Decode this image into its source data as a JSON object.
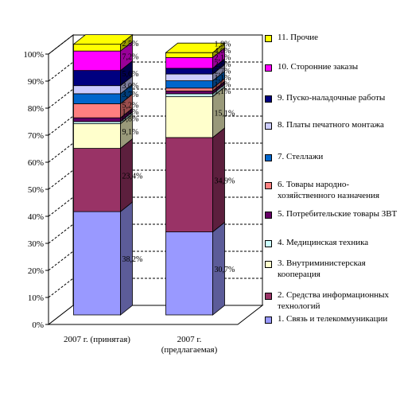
{
  "chart_data": {
    "type": "bar",
    "stacked": true,
    "three_d": true,
    "normalized_percent": true,
    "categories": [
      "2007 г. (принятая)",
      "2007 г. (предлагаемая)"
    ],
    "y_ticks": [
      "0%",
      "10%",
      "20%",
      "30%",
      "40%",
      "50%",
      "60%",
      "70%",
      "80%",
      "90%",
      "100%"
    ],
    "ylim": [
      0,
      100
    ],
    "grid": "dashed horizontal",
    "legend_position": "right",
    "series": [
      {
        "name": "1. Связь и телекоммуникации",
        "color": "#9999ff",
        "values": [
          38.2,
          30.7
        ],
        "labels": [
          "38,2%",
          "30,7%"
        ]
      },
      {
        "name": "2. Средства информационных технологий",
        "color": "#993366",
        "values": [
          23.4,
          34.9
        ],
        "labels": [
          "23,4%",
          "34,9%"
        ]
      },
      {
        "name": "3. Внутриминистерская кооперация",
        "color": "#ffffcc",
        "values": [
          9.1,
          15.1
        ],
        "labels": [
          "9,1%",
          "15,1%"
        ]
      },
      {
        "name": "4. Медицинская техника",
        "color": "#ccffff",
        "values": [
          0.8,
          1.1
        ],
        "labels": [
          "0,8%",
          "1,1%"
        ]
      },
      {
        "name": "5. Потребительские товары ЗВТ",
        "color": "#660066",
        "values": [
          1.4,
          1.0
        ],
        "labels": [
          "1,4%",
          "1,0%"
        ]
      },
      {
        "name": "6. Товары народно-хозяйственного назначения",
        "color": "#ff8080",
        "values": [
          5.2,
          1.1
        ],
        "labels": [
          "5,2%",
          "1,1%"
        ]
      },
      {
        "name": "7. Стеллажи",
        "color": "#0066cc",
        "values": [
          3.7,
          2.7
        ],
        "labels": [
          "3,7%",
          "2,7%"
        ]
      },
      {
        "name": "8. Платы печатного монтажа",
        "color": "#ccccff",
        "values": [
          3.0,
          2.5
        ],
        "labels": [
          "3,0%",
          "2,5%"
        ]
      },
      {
        "name": "9. Пуско-наладочные работы",
        "color": "#000080",
        "values": [
          5.6,
          2.1
        ],
        "labels": [
          "5,6%",
          "2,1%"
        ]
      },
      {
        "name": "10. Сторонние заказы",
        "color": "#ff00ff",
        "values": [
          7.2,
          4.0
        ],
        "labels": [
          "7,2%",
          "4,0%"
        ]
      },
      {
        "name": "11. Прочие",
        "color": "#ffff00",
        "values": [
          2.5,
          1.8
        ],
        "labels": [
          "2,5%",
          "1,8%"
        ]
      }
    ]
  }
}
